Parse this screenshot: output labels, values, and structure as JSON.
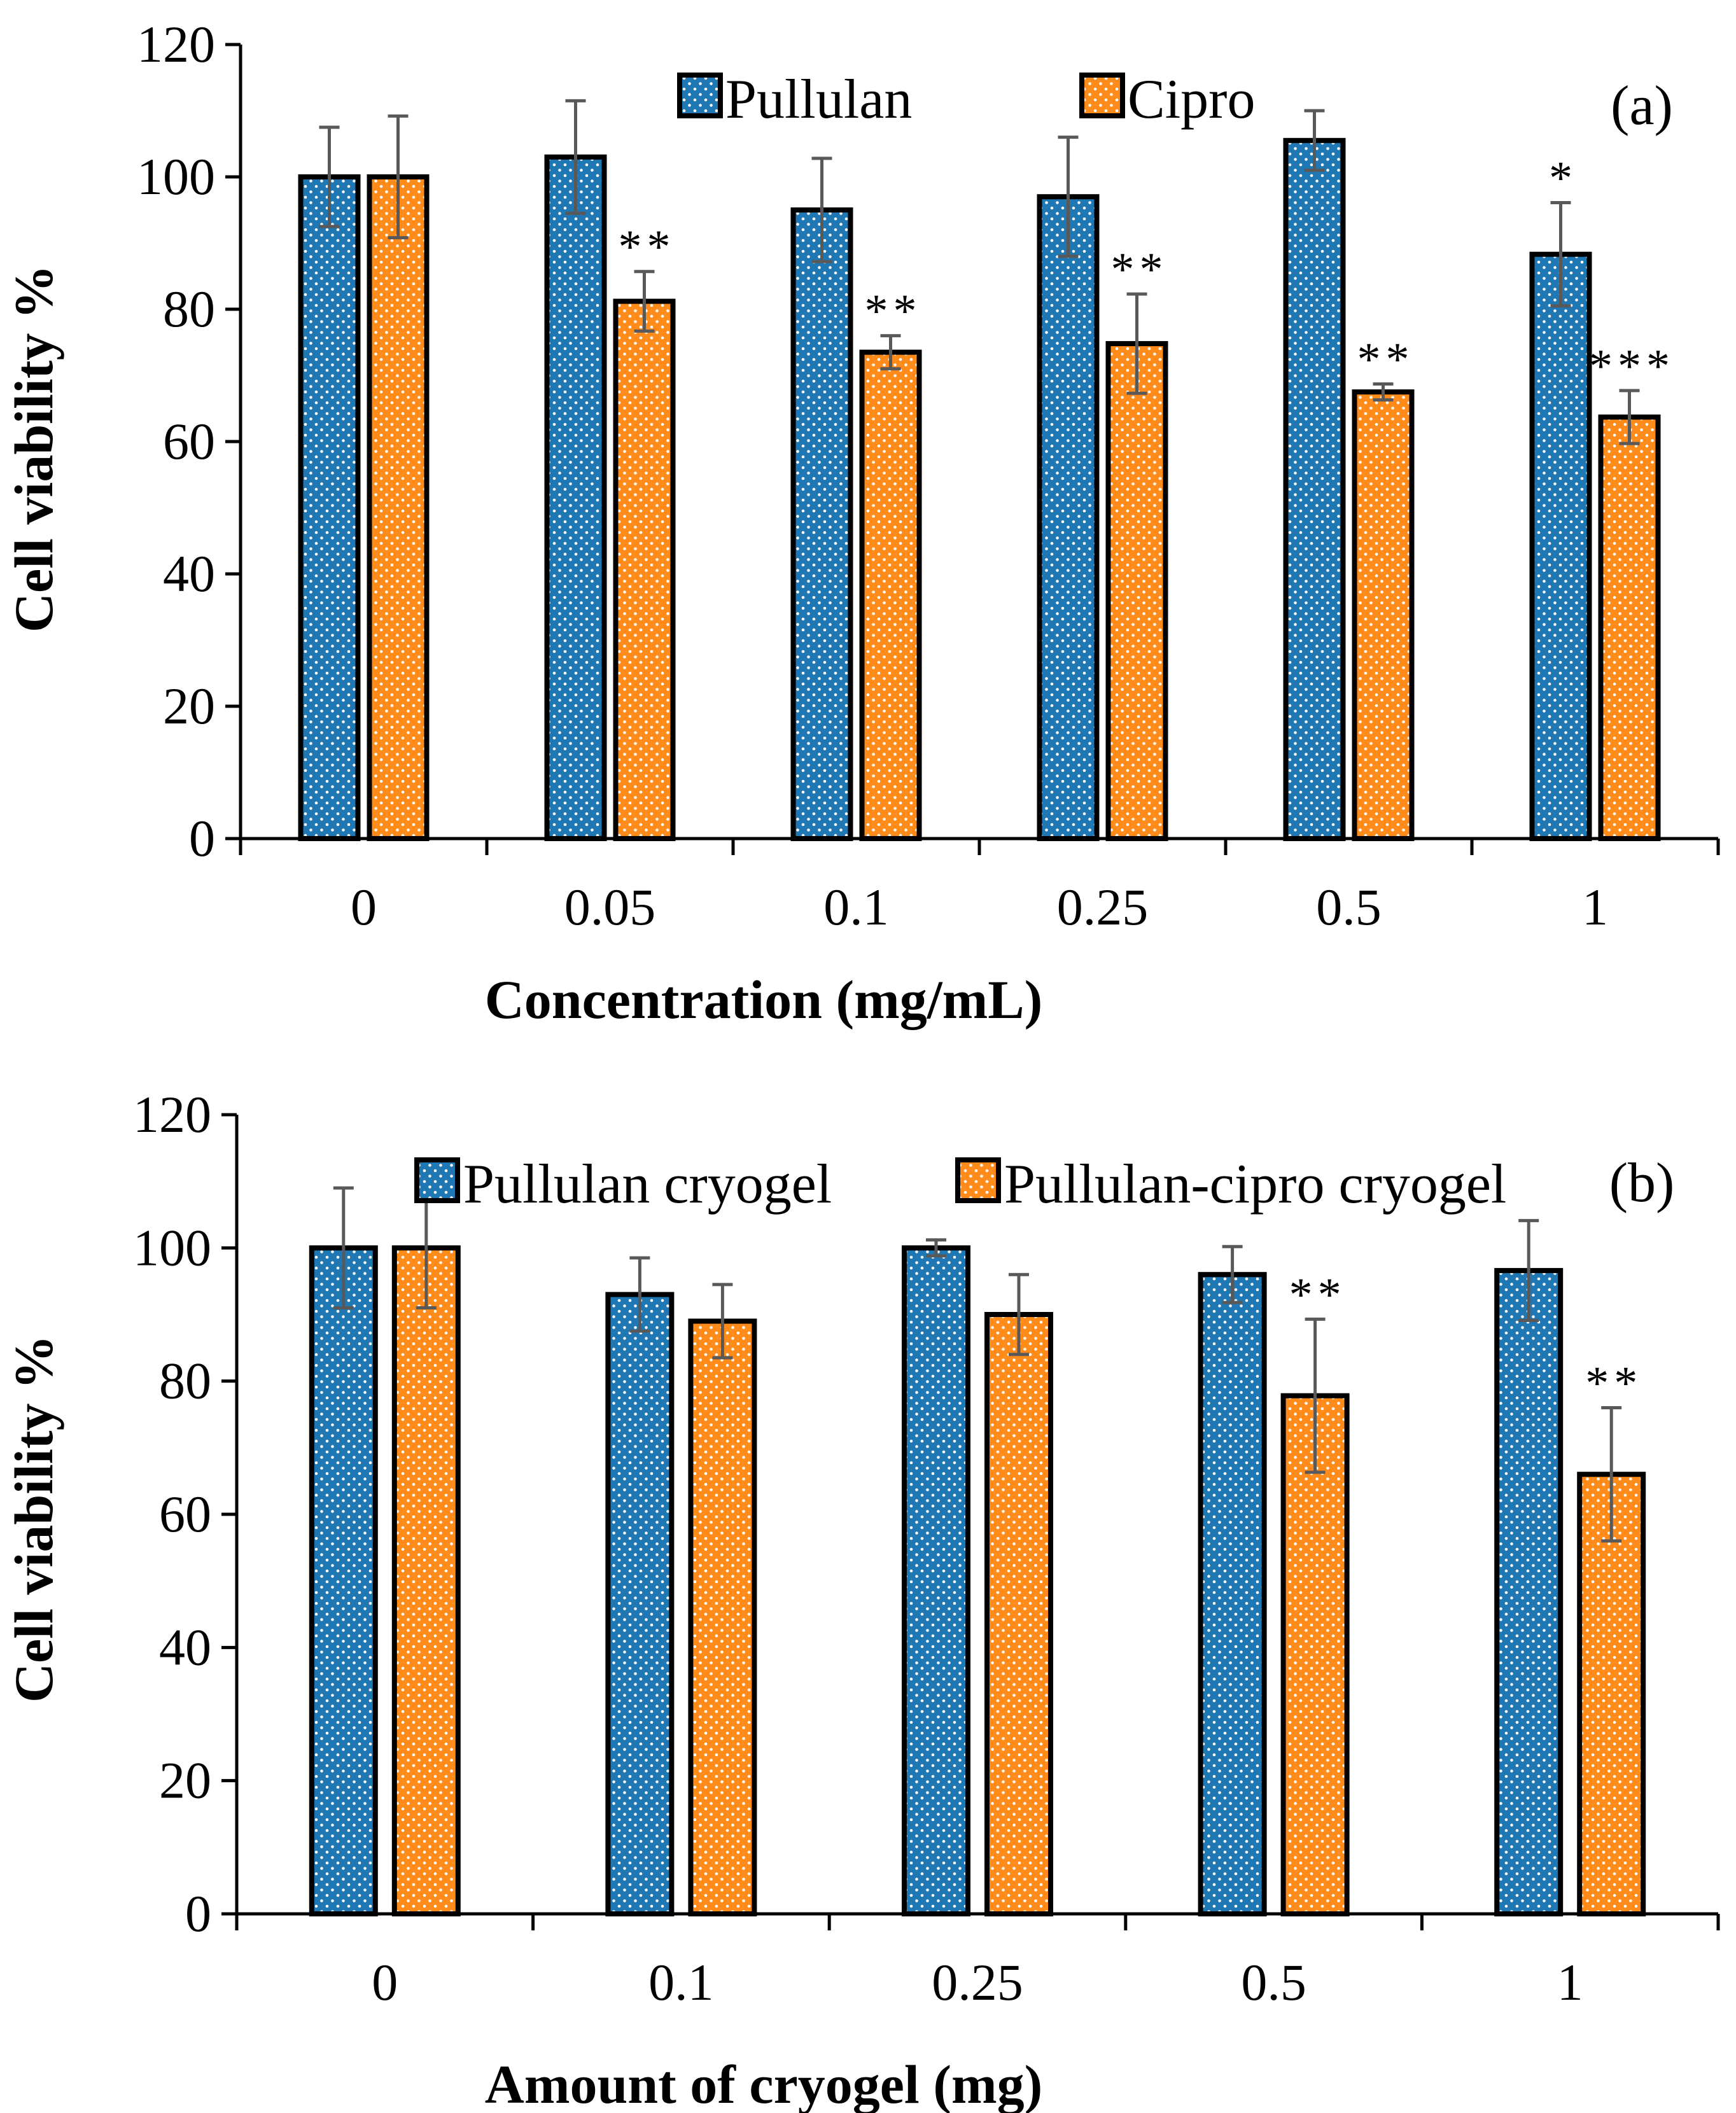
{
  "chart_data": [
    {
      "type": "bar",
      "panel_label": "(a)",
      "xlabel": "Concentration (mg/mL)",
      "ylabel": "Cell viability %",
      "ylim": [
        0,
        120
      ],
      "yticks": [
        "0",
        "20",
        "40",
        "60",
        "80",
        "100",
        "120"
      ],
      "categories": [
        "0",
        "0.05",
        "0.1",
        "0.25",
        "0.5",
        "1"
      ],
      "legend_position": "top-center",
      "series": [
        {
          "name": "Pullulan",
          "color": "#1f77b4",
          "values": [
            100,
            103,
            95,
            97,
            105.5,
            88.3
          ],
          "errors": [
            7.5,
            8.5,
            7.8,
            9,
            4.5,
            7.8
          ],
          "significance": [
            "",
            "",
            "",
            "",
            "",
            "*"
          ]
        },
        {
          "name": "Cipro",
          "color": "#ff8c1a",
          "values": [
            100,
            81.2,
            73.5,
            74.8,
            67.5,
            63.7
          ],
          "errors": [
            9.2,
            4.5,
            2.5,
            7.5,
            1.2,
            4
          ],
          "significance": [
            "",
            "**",
            "**",
            "**",
            "**",
            "***"
          ]
        }
      ]
    },
    {
      "type": "bar",
      "panel_label": "(b)",
      "xlabel": "Amount of cryogel (mg)",
      "ylabel": "Cell viability %",
      "ylim": [
        0,
        120
      ],
      "yticks": [
        "0",
        "20",
        "40",
        "60",
        "80",
        "100",
        "120"
      ],
      "categories": [
        "0",
        "0.1",
        "0.25",
        "0.5",
        "1"
      ],
      "legend_position": "top-center",
      "series": [
        {
          "name": "Pullulan cryogel",
          "color": "#1f77b4",
          "values": [
            100,
            93,
            100,
            96,
            96.6
          ],
          "errors": [
            9,
            5.5,
            1.2,
            4.2,
            7.5
          ],
          "significance": [
            "",
            "",
            "",
            "",
            ""
          ]
        },
        {
          "name": "Pullulan-cipro cryogel",
          "color": "#ff8c1a",
          "values": [
            100,
            89,
            90,
            77.8,
            66
          ],
          "errors": [
            9,
            5.5,
            6,
            11.5,
            10
          ],
          "significance": [
            "",
            "",
            "",
            "**",
            "**"
          ]
        }
      ]
    }
  ]
}
